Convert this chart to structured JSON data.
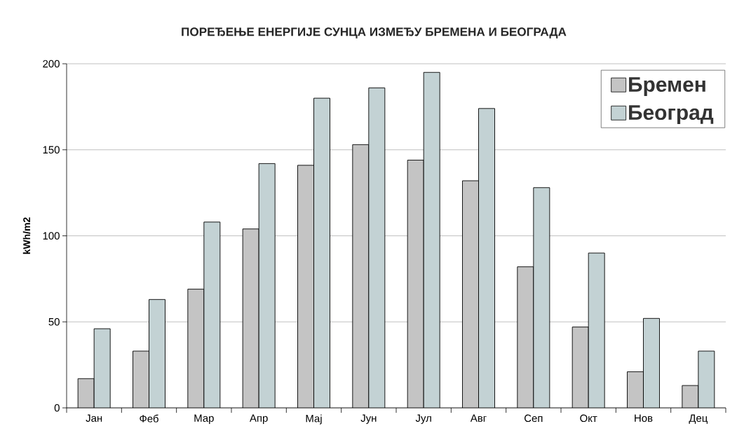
{
  "chart_data": {
    "type": "bar",
    "title": "ПОРЕЂЕЊЕ ЕНЕРГИЈЕ СУНЦА ИЗМЕЂУ БРЕМЕНА И БЕОГРАДА",
    "ylabel": "kWh/m2",
    "categories": [
      "Јан",
      "Феб",
      "Мар",
      "Апр",
      "Мај",
      "Јун",
      "Јул",
      "Авг",
      "Сеп",
      "Окт",
      "Нов",
      "Дец"
    ],
    "series": [
      {
        "name": "Бремен",
        "color": "#c4c4c4",
        "values": [
          17,
          33,
          69,
          104,
          141,
          153,
          144,
          132,
          82,
          47,
          21,
          13
        ]
      },
      {
        "name": "Београд",
        "color": "#c3d2d4",
        "values": [
          46,
          63,
          108,
          142,
          180,
          186,
          195,
          174,
          128,
          90,
          52,
          33
        ]
      }
    ],
    "ylim": [
      0,
      200
    ],
    "yticks": [
      0,
      50,
      100,
      150,
      200
    ],
    "grid": "y",
    "legend": "top right"
  }
}
